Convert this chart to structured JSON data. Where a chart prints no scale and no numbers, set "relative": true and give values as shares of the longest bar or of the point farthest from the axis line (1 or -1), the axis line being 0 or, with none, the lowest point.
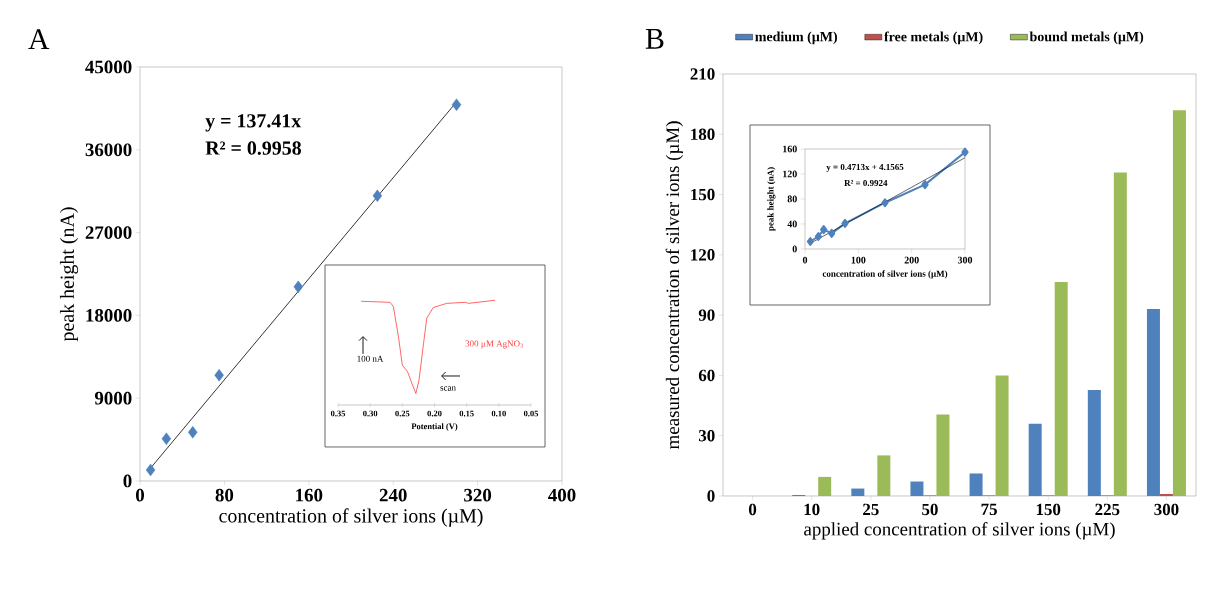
{
  "chart_data": [
    {
      "type": "scatter",
      "title": "A",
      "xlabel": "concentration of silver ions (µM)",
      "ylabel": "peak height  (nA)",
      "xlim": [
        0,
        400
      ],
      "xticks": [
        0,
        80,
        160,
        240,
        320,
        400
      ],
      "ylim": [
        0,
        45000
      ],
      "yticks": [
        0,
        9000,
        18000,
        27000,
        36000,
        45000
      ],
      "annotations": [
        "y = 137.41x",
        "R² = 0.9958"
      ],
      "series": [
        {
          "x": [
            10,
            25,
            50,
            75,
            150,
            225,
            300
          ],
          "values": [
            1200,
            4600,
            5300,
            11500,
            21100,
            31000,
            40900
          ],
          "color": "#4f81bd",
          "marker": "diamond"
        },
        {
          "type": "line",
          "x": [
            10,
            300
          ],
          "values": [
            1400,
            41200
          ],
          "color": "#000000",
          "marker": "none"
        }
      ]
    },
    {
      "type": "line",
      "relative": true,
      "xlabel": "Potential (V)",
      "xlim": [
        0.35,
        0.05
      ],
      "xticks": [
        {
          "value": 0.35,
          "label": "0.35"
        },
        {
          "value": 0.3,
          "label": "0.30"
        },
        {
          "value": 0.25,
          "label": "0.25"
        },
        {
          "value": 0.2,
          "label": "0.20"
        },
        {
          "value": 0.15,
          "label": "0.15"
        },
        {
          "value": 0.1,
          "label": "0.10"
        },
        {
          "value": 0.05,
          "label": "0.05"
        }
      ],
      "annotations": [
        "100 nA",
        "scan",
        "300 µM AgNO$_{3}$"
      ],
      "series": [
        {
          "x": [
            0.314,
            0.269,
            0.264,
            0.256,
            0.25,
            0.242,
            0.236,
            0.229,
            0.224,
            0.217,
            0.212,
            0.202,
            0.181,
            0.152,
            0.147,
            0.106
          ],
          "values": [
            0.99,
            0.98,
            0.94,
            0.65,
            0.38,
            0.32,
            0.22,
            0.11,
            0.24,
            0.59,
            0.83,
            0.93,
            0.97,
            0.98,
            0.97,
            1.0
          ],
          "color": "#ff4040"
        }
      ]
    },
    {
      "type": "bar",
      "title": "B",
      "categories": [
        "0",
        "10",
        "25",
        "50",
        "75",
        "150",
        "225",
        "300"
      ],
      "xlabel": "applied concentration of silver ions (µM)",
      "ylabel": "measured  concentration of silver ions  (µM)",
      "ylim": [
        0,
        210
      ],
      "yticks": [
        0,
        30,
        60,
        90,
        120,
        150,
        180,
        210
      ],
      "legend": "top",
      "series": [
        {
          "name": "medium (µM)",
          "color": "#4f81bd",
          "values": [
            0,
            0.5,
            3.7,
            7.2,
            11.2,
            36,
            52.8,
            93
          ]
        },
        {
          "name": "free metals (µM)",
          "color": "#c0504d",
          "values": [
            0,
            0,
            0,
            0.3,
            0.3,
            0.3,
            0.3,
            1
          ]
        },
        {
          "name": "bound metals (µM)",
          "color": "#9bbb59",
          "values": [
            0,
            9.5,
            20.2,
            40.5,
            60,
            106.5,
            161,
            192
          ]
        }
      ]
    },
    {
      "type": "line",
      "xlabel": "concentration of silver ions (µM)",
      "ylabel": "peak height  (nA)",
      "xlim": [
        0,
        300
      ],
      "xticks": [
        0,
        100,
        200,
        300
      ],
      "ylim": [
        0,
        160
      ],
      "yticks": [
        0,
        40,
        80,
        120,
        160
      ],
      "annotations": [
        "y = 0.4713x + 4.1565",
        "R² = 0.9924"
      ],
      "series": [
        {
          "x": [
            10,
            25,
            35,
            50,
            75,
            150,
            225,
            300
          ],
          "values": [
            12,
            20,
            31,
            25,
            41,
            74,
            103,
            155
          ],
          "color": "#4f81bd",
          "marker": "diamond"
        },
        {
          "x": [
            10,
            300
          ],
          "values": [
            9,
            146
          ],
          "color": "#000000",
          "marker": "none"
        }
      ]
    }
  ]
}
